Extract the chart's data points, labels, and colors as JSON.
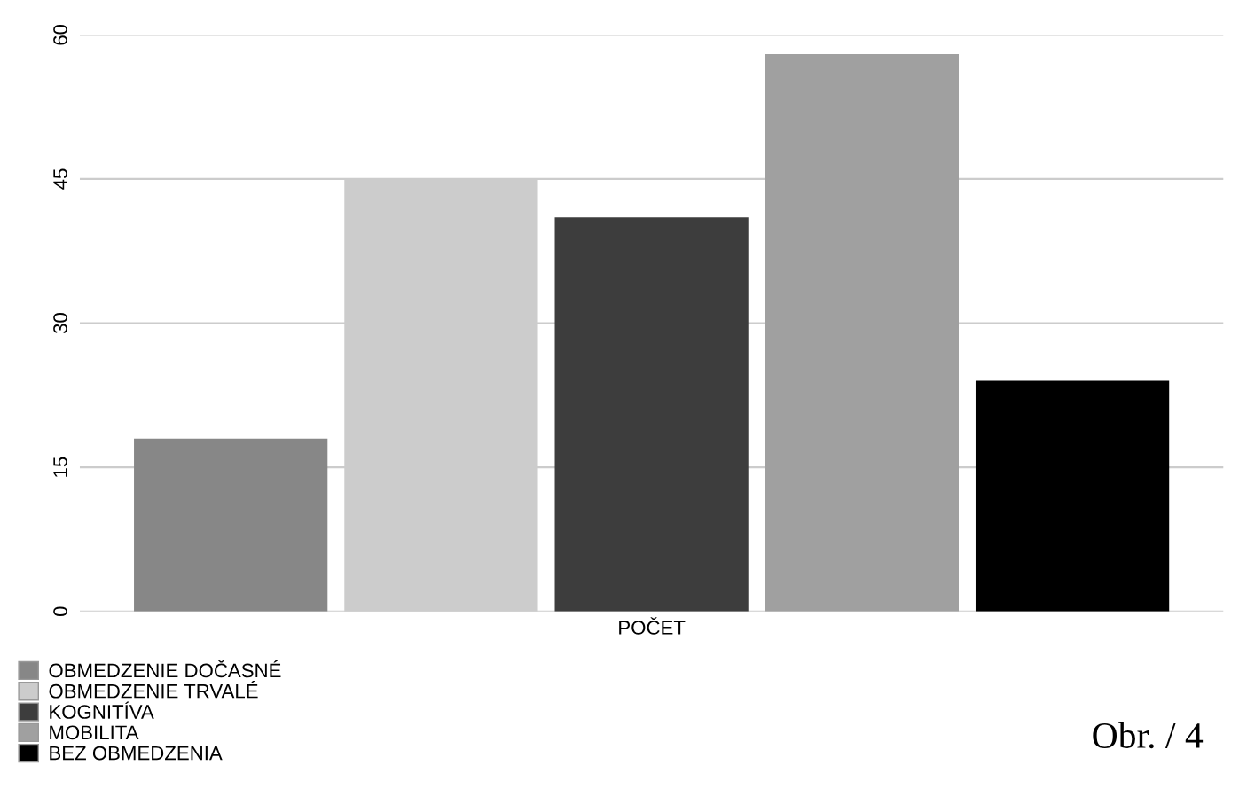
{
  "chart_data": {
    "type": "bar",
    "categories": [
      "POČET"
    ],
    "series": [
      {
        "name": "OBMEDZENIE DOČASNÉ",
        "color": "#878787",
        "values": [
          18
        ]
      },
      {
        "name": "OBMEDZENIE TRVALÉ",
        "color": "#cccccc",
        "values": [
          45
        ]
      },
      {
        "name": "KOGNITÍVA",
        "color": "#3d3d3d",
        "values": [
          41
        ]
      },
      {
        "name": "MOBILITA",
        "color": "#a0a0a0",
        "values": [
          58
        ]
      },
      {
        "name": "BEZ OBMEDZENIA",
        "color": "#000000",
        "values": [
          24
        ]
      }
    ],
    "ylim": [
      0,
      60
    ],
    "yticks": [
      0,
      15,
      30,
      45,
      60
    ],
    "grid": "y",
    "legend": "bottom left",
    "annotations": [
      "Obr. / 4"
    ]
  }
}
